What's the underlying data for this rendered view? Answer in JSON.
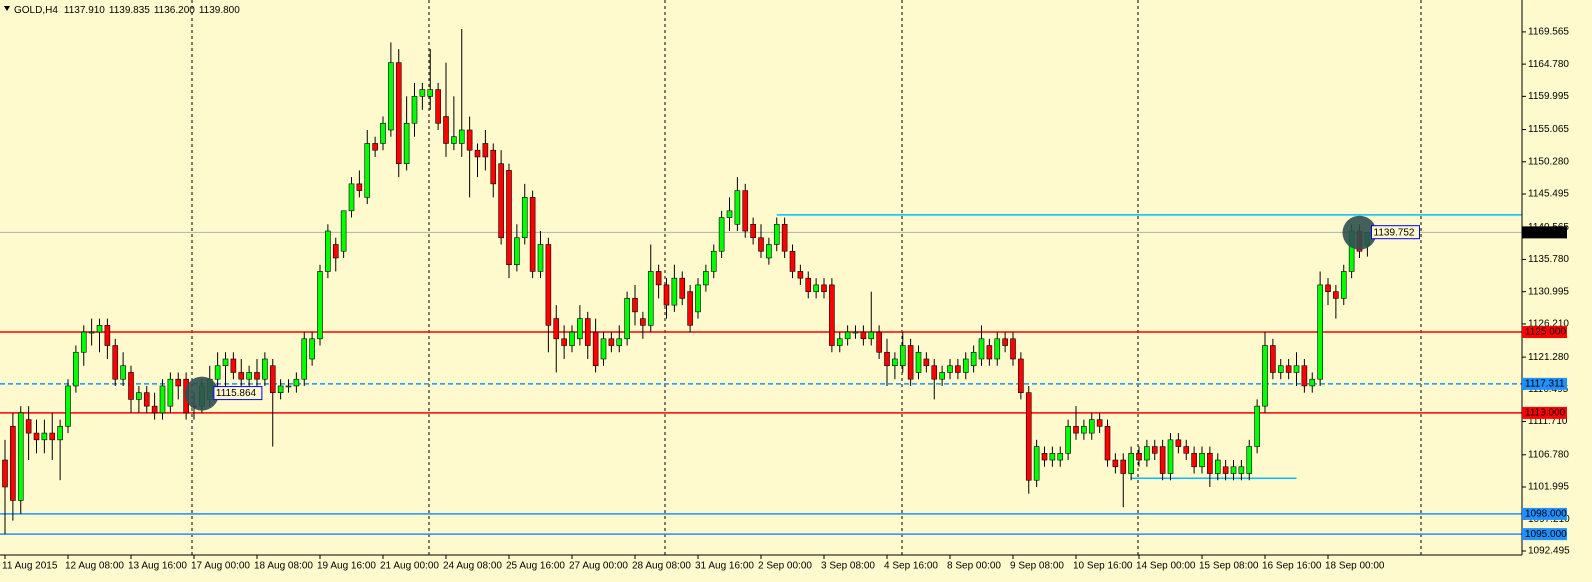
{
  "chart_data": {
    "type": "candlestick",
    "symbol": "GOLD,H4",
    "ohlc_labels": [
      "1137.910",
      "1139.835",
      "1136.200",
      "1139.800"
    ],
    "colors": {
      "up": "#00ff00",
      "down": "#ff0000"
    },
    "ylim": [
      1091.9,
      1174.3
    ],
    "yticks": [
      1169.565,
      {
        "value": 1164.78,
        "label": "1164.780"
      },
      1159.995,
      1155.065,
      {
        "value": 1150.28,
        "label": "1150.280"
      },
      1145.495,
      1140.565,
      {
        "value": 1135.78,
        "label": "1135.780"
      },
      1130.995,
      {
        "value": 1126.21,
        "label": "1126.210"
      },
      {
        "value": 1121.28,
        "label": "1121.280"
      },
      1116.495,
      {
        "value": 1111.71,
        "label": "1111.710"
      },
      {
        "value": 1106.78,
        "label": "1106.780"
      },
      1101.995,
      {
        "value": 1097.21,
        "label": "1097.210"
      },
      1092.495
    ],
    "categories": [
      "11 Aug 2015",
      null,
      null,
      null,
      null,
      null,
      null,
      null,
      "12 Aug 08:00",
      null,
      null,
      null,
      null,
      null,
      null,
      null,
      "13 Aug 16:00",
      null,
      null,
      null,
      null,
      null,
      null,
      null,
      "17 Aug 00:00",
      null,
      null,
      null,
      null,
      null,
      null,
      null,
      "18 Aug 08:00",
      null,
      null,
      null,
      null,
      null,
      null,
      null,
      "19 Aug 16:00",
      null,
      null,
      null,
      null,
      null,
      null,
      null,
      "21 Aug 00:00",
      null,
      null,
      null,
      null,
      null,
      null,
      null,
      "24 Aug 08:00",
      null,
      null,
      null,
      null,
      null,
      null,
      null,
      "25 Aug 16:00",
      null,
      null,
      null,
      null,
      null,
      null,
      null,
      "27 Aug 00:00",
      null,
      null,
      null,
      null,
      null,
      null,
      null,
      "28 Aug 08:00",
      null,
      null,
      null,
      null,
      null,
      null,
      null,
      "31 Aug 16:00",
      null,
      null,
      null,
      null,
      null,
      null,
      null,
      "2 Sep 00:00",
      null,
      null,
      null,
      null,
      null,
      null,
      null,
      "3 Sep 08:00",
      null,
      null,
      null,
      null,
      null,
      null,
      null,
      "4 Sep 16:00",
      null,
      null,
      null,
      null,
      null,
      null,
      null,
      "8 Sep 00:00",
      null,
      null,
      null,
      null,
      null,
      null,
      null,
      "9 Sep 08:00",
      null,
      null,
      null,
      null,
      null,
      null,
      null,
      "10 Sep 16:00",
      null,
      null,
      null,
      null,
      null,
      null,
      null,
      "14 Sep 00:00",
      null,
      null,
      null,
      null,
      null,
      null,
      null,
      "15 Sep 08:00",
      null,
      null,
      null,
      null,
      null,
      null,
      null,
      "16 Sep 16:00",
      null,
      null,
      null,
      null,
      null,
      null,
      null,
      "18 Sep 00:00",
      null,
      null,
      null,
      null,
      null
    ],
    "candles": [
      [
        1106,
        1109,
        1095,
        1102
      ],
      [
        1111,
        1113,
        1097,
        1100
      ],
      [
        1100,
        1114,
        1098,
        1113
      ],
      [
        1112,
        1114,
        1106,
        1110
      ],
      [
        1110,
        1112,
        1107,
        1109
      ],
      [
        1109,
        1112,
        1107,
        1110
      ],
      [
        1110,
        1113,
        1106,
        1109
      ],
      [
        1109,
        1112,
        1103,
        1111
      ],
      [
        1111,
        1118,
        1110,
        1117
      ],
      [
        1117,
        1123,
        1116,
        1122
      ],
      [
        1122,
        1126,
        1120,
        1125
      ],
      [
        1125,
        1127,
        1123,
        1125
      ],
      [
        1125,
        1127,
        1122,
        1126
      ],
      [
        1126,
        1127,
        1121,
        1123
      ],
      [
        1123,
        1124,
        1117,
        1118
      ],
      [
        1118,
        1122,
        1117,
        1120
      ],
      [
        1119,
        1120,
        1113,
        1115
      ],
      [
        1115,
        1117,
        1113,
        1116
      ],
      [
        1116,
        1117,
        1113,
        1114
      ],
      [
        1114,
        1116,
        1112,
        1113
      ],
      [
        1113,
        1118,
        1112,
        1117
      ],
      [
        1114,
        1119,
        1113,
        1118
      ],
      [
        1118,
        1119,
        1115,
        1117
      ],
      [
        1118,
        1119,
        1112,
        1113
      ],
      [
        1114,
        1116,
        1112,
        1114
      ],
      [
        1114,
        1118,
        1113,
        1117
      ],
      [
        1115,
        1120,
        1114,
        1118
      ],
      [
        1118,
        1122,
        1116,
        1120
      ],
      [
        1120,
        1122,
        1117,
        1121
      ],
      [
        1121,
        1122,
        1118,
        1119
      ],
      [
        1119,
        1121,
        1117,
        1118
      ],
      [
        1118,
        1120,
        1117,
        1119
      ],
      [
        1119,
        1121,
        1117,
        1118
      ],
      [
        1118,
        1122,
        1117,
        1121
      ],
      [
        1120,
        1121,
        1108,
        1116
      ],
      [
        1116,
        1118,
        1115,
        1117
      ],
      [
        1117,
        1118,
        1116,
        1117
      ],
      [
        1117,
        1119,
        1116,
        1118
      ],
      [
        1118,
        1125,
        1117,
        1124
      ],
      [
        1121,
        1125,
        1120,
        1124
      ],
      [
        1124,
        1135,
        1123,
        1134
      ],
      [
        1134,
        1141,
        1133,
        1140
      ],
      [
        1138,
        1139,
        1134,
        1136
      ],
      [
        1137,
        1143,
        1136,
        1143
      ],
      [
        1143,
        1148,
        1142,
        1147
      ],
      [
        1147,
        1149,
        1145,
        1146
      ],
      [
        1145,
        1155,
        1144,
        1153
      ],
      [
        1153,
        1154,
        1151,
        1152
      ],
      [
        1153,
        1157,
        1152,
        1156
      ],
      [
        1155,
        1168,
        1154,
        1165
      ],
      [
        1165,
        1167,
        1148,
        1150
      ],
      [
        1150,
        1160,
        1149,
        1156
      ],
      [
        1156,
        1162,
        1154,
        1160
      ],
      [
        1160,
        1162,
        1158,
        1161
      ],
      [
        1160,
        1167,
        1158,
        1161
      ],
      [
        1161,
        1162,
        1155,
        1156
      ],
      [
        1157,
        1165,
        1151,
        1153
      ],
      [
        1153,
        1160,
        1152,
        1154
      ],
      [
        1153,
        1170,
        1151,
        1155
      ],
      [
        1155,
        1157,
        1145,
        1152
      ],
      [
        1152,
        1153,
        1148,
        1151
      ],
      [
        1153,
        1155,
        1149,
        1151
      ],
      [
        1152,
        1153,
        1145,
        1147
      ],
      [
        1150,
        1152,
        1138,
        1139
      ],
      [
        1149,
        1150,
        1133,
        1135
      ],
      [
        1135,
        1141,
        1134,
        1139
      ],
      [
        1139,
        1147,
        1138,
        1145
      ],
      [
        1145,
        1146,
        1133,
        1134
      ],
      [
        1134,
        1140,
        1133,
        1138
      ],
      [
        1138,
        1139,
        1122,
        1126
      ],
      [
        1127,
        1129,
        1119,
        1124
      ],
      [
        1124,
        1126,
        1121,
        1123
      ],
      [
        1123,
        1126,
        1122,
        1125
      ],
      [
        1124,
        1129,
        1123,
        1127
      ],
      [
        1127,
        1128,
        1121,
        1123
      ],
      [
        1125,
        1127,
        1119,
        1120
      ],
      [
        1121,
        1125,
        1120,
        1124
      ],
      [
        1124,
        1125,
        1122,
        1123
      ],
      [
        1123,
        1126,
        1122,
        1124
      ],
      [
        1124,
        1131,
        1123,
        1130
      ],
      [
        1130,
        1132,
        1126,
        1128
      ],
      [
        1127,
        1128,
        1124,
        1126
      ],
      [
        1126,
        1138,
        1125,
        1134
      ],
      [
        1134,
        1135,
        1130,
        1132
      ],
      [
        1132,
        1133,
        1127,
        1129
      ],
      [
        1129,
        1135,
        1128,
        1133
      ],
      [
        1133,
        1134,
        1129,
        1130
      ],
      [
        1131,
        1132,
        1125,
        1126
      ],
      [
        1128,
        1133,
        1127,
        1132
      ],
      [
        1132,
        1135,
        1131,
        1134
      ],
      [
        1134,
        1138,
        1133,
        1137
      ],
      [
        1137,
        1143,
        1136,
        1142
      ],
      [
        1142,
        1145,
        1140,
        1143
      ],
      [
        1141,
        1148,
        1140,
        1146
      ],
      [
        1146,
        1147,
        1139,
        1140
      ],
      [
        1141,
        1142,
        1138,
        1139
      ],
      [
        1139,
        1141,
        1136,
        1137
      ],
      [
        1136,
        1139,
        1135,
        1138
      ],
      [
        1138,
        1142,
        1137,
        1141
      ],
      [
        1141,
        1142,
        1136,
        1137
      ],
      [
        1137,
        1138,
        1133,
        1134
      ],
      [
        1134,
        1135,
        1132,
        1133
      ],
      [
        1133,
        1134,
        1130,
        1131
      ],
      [
        1131,
        1133,
        1130,
        1132
      ],
      [
        1132,
        1133,
        1130,
        1131
      ],
      [
        1132,
        1133,
        1122,
        1123
      ],
      [
        1123,
        1125,
        1122,
        1124
      ],
      [
        1124,
        1126,
        1123,
        1125
      ],
      [
        1125,
        1126,
        1124,
        1125
      ],
      [
        1125,
        1126,
        1123,
        1124
      ],
      [
        1124,
        1131,
        1123,
        1125
      ],
      [
        1125,
        1126,
        1121,
        1122
      ],
      [
        1122,
        1124,
        1117,
        1120
      ],
      [
        1120,
        1122,
        1118,
        1121
      ],
      [
        1120,
        1125,
        1119,
        1123
      ],
      [
        1123,
        1124,
        1117,
        1118
      ],
      [
        1119,
        1123,
        1118,
        1122
      ],
      [
        1121,
        1122,
        1119,
        1120
      ],
      [
        1120,
        1121,
        1115,
        1118
      ],
      [
        1118,
        1120,
        1117,
        1119
      ],
      [
        1119,
        1121,
        1118,
        1120
      ],
      [
        1120,
        1121,
        1118,
        1119
      ],
      [
        1119,
        1122,
        1118,
        1121
      ],
      [
        1120,
        1123,
        1119,
        1122
      ],
      [
        1121,
        1126,
        1120,
        1124
      ],
      [
        1123,
        1124,
        1120,
        1121
      ],
      [
        1121,
        1125,
        1120,
        1124
      ],
      [
        1124,
        1125,
        1122,
        1123
      ],
      [
        1124,
        1125,
        1120,
        1121
      ],
      [
        1121,
        1122,
        1115,
        1116
      ],
      [
        1116,
        1117,
        1101,
        1103
      ],
      [
        1103,
        1109,
        1102,
        1108
      ],
      [
        1107,
        1108,
        1105,
        1106
      ],
      [
        1106,
        1108,
        1105,
        1107
      ],
      [
        1106,
        1108,
        1105,
        1107
      ],
      [
        1107,
        1112,
        1106,
        1111
      ],
      [
        1111,
        1114,
        1109,
        1110
      ],
      [
        1110,
        1112,
        1109,
        1111
      ],
      [
        1110,
        1113,
        1109,
        1112
      ],
      [
        1112,
        1113,
        1110,
        1111
      ],
      [
        1111,
        1112,
        1105,
        1106
      ],
      [
        1106,
        1107,
        1104,
        1105
      ],
      [
        1106,
        1107,
        1099,
        1104
      ],
      [
        1104,
        1108,
        1103,
        1107
      ],
      [
        1107,
        1108,
        1105,
        1106
      ],
      [
        1106,
        1109,
        1105,
        1108
      ],
      [
        1108,
        1109,
        1106,
        1107
      ],
      [
        1108,
        1109,
        1103,
        1104
      ],
      [
        1104,
        1110,
        1103,
        1109
      ],
      [
        1109,
        1110,
        1107,
        1108
      ],
      [
        1108,
        1109,
        1106,
        1107
      ],
      [
        1107,
        1108,
        1104,
        1105
      ],
      [
        1105,
        1108,
        1104,
        1107
      ],
      [
        1107,
        1108,
        1102,
        1104
      ],
      [
        1104,
        1107,
        1103,
        1106
      ],
      [
        1105,
        1106,
        1103,
        1104
      ],
      [
        1104,
        1106,
        1103,
        1105
      ],
      [
        1104,
        1106,
        1103,
        1105
      ],
      [
        1104,
        1109,
        1103,
        1108
      ],
      [
        1108,
        1115,
        1107,
        1114
      ],
      [
        1114,
        1125,
        1113,
        1123
      ],
      [
        1123,
        1124,
        1118,
        1119
      ],
      [
        1119,
        1121,
        1118,
        1120
      ],
      [
        1120,
        1121,
        1118,
        1119
      ],
      [
        1119,
        1122,
        1117,
        1120
      ],
      [
        1120,
        1121,
        1116,
        1117
      ],
      [
        1117,
        1119,
        1116,
        1118
      ],
      [
        1118,
        1134,
        1117,
        1132
      ],
      [
        1132,
        1133,
        1129,
        1131
      ],
      [
        1131,
        1132,
        1127,
        1130
      ],
      [
        1130,
        1135,
        1129,
        1134
      ],
      [
        1134,
        1141,
        1133,
        1140
      ],
      [
        1140,
        1141,
        1136,
        1137
      ],
      [
        1137.91,
        1139.835,
        1136.2,
        1139.8
      ]
    ],
    "levels": [
      {
        "value": 1125,
        "label": "1125.000",
        "color": "#ff0000",
        "dashed": false
      },
      {
        "value": 1113,
        "label": "1113.000",
        "color": "#ff0000",
        "dashed": false
      },
      {
        "value": 1098,
        "label": "1098.000",
        "color": "#1e90ff",
        "dashed": false
      },
      {
        "value": 1095,
        "label": "1095.000",
        "color": "#1e90ff",
        "dashed": false
      },
      {
        "value": 1117.311,
        "label": "1117.311",
        "color": "#1e90ff",
        "dashed": true
      },
      {
        "value": 1139.8,
        "label": "1139.800",
        "color": "#000000",
        "dashed": false
      }
    ],
    "trendlines": [
      {
        "value": 1142.4,
        "x": [
          98,
          193
        ],
        "color": "#00bfff"
      },
      {
        "value": 1103.3,
        "x": [
          143,
          164
        ],
        "color": "#00bfff"
      }
    ],
    "annotations": [
      {
        "x": 25,
        "value": 1115.864
      },
      {
        "x": 172,
        "value": 1139.752
      }
    ]
  }
}
